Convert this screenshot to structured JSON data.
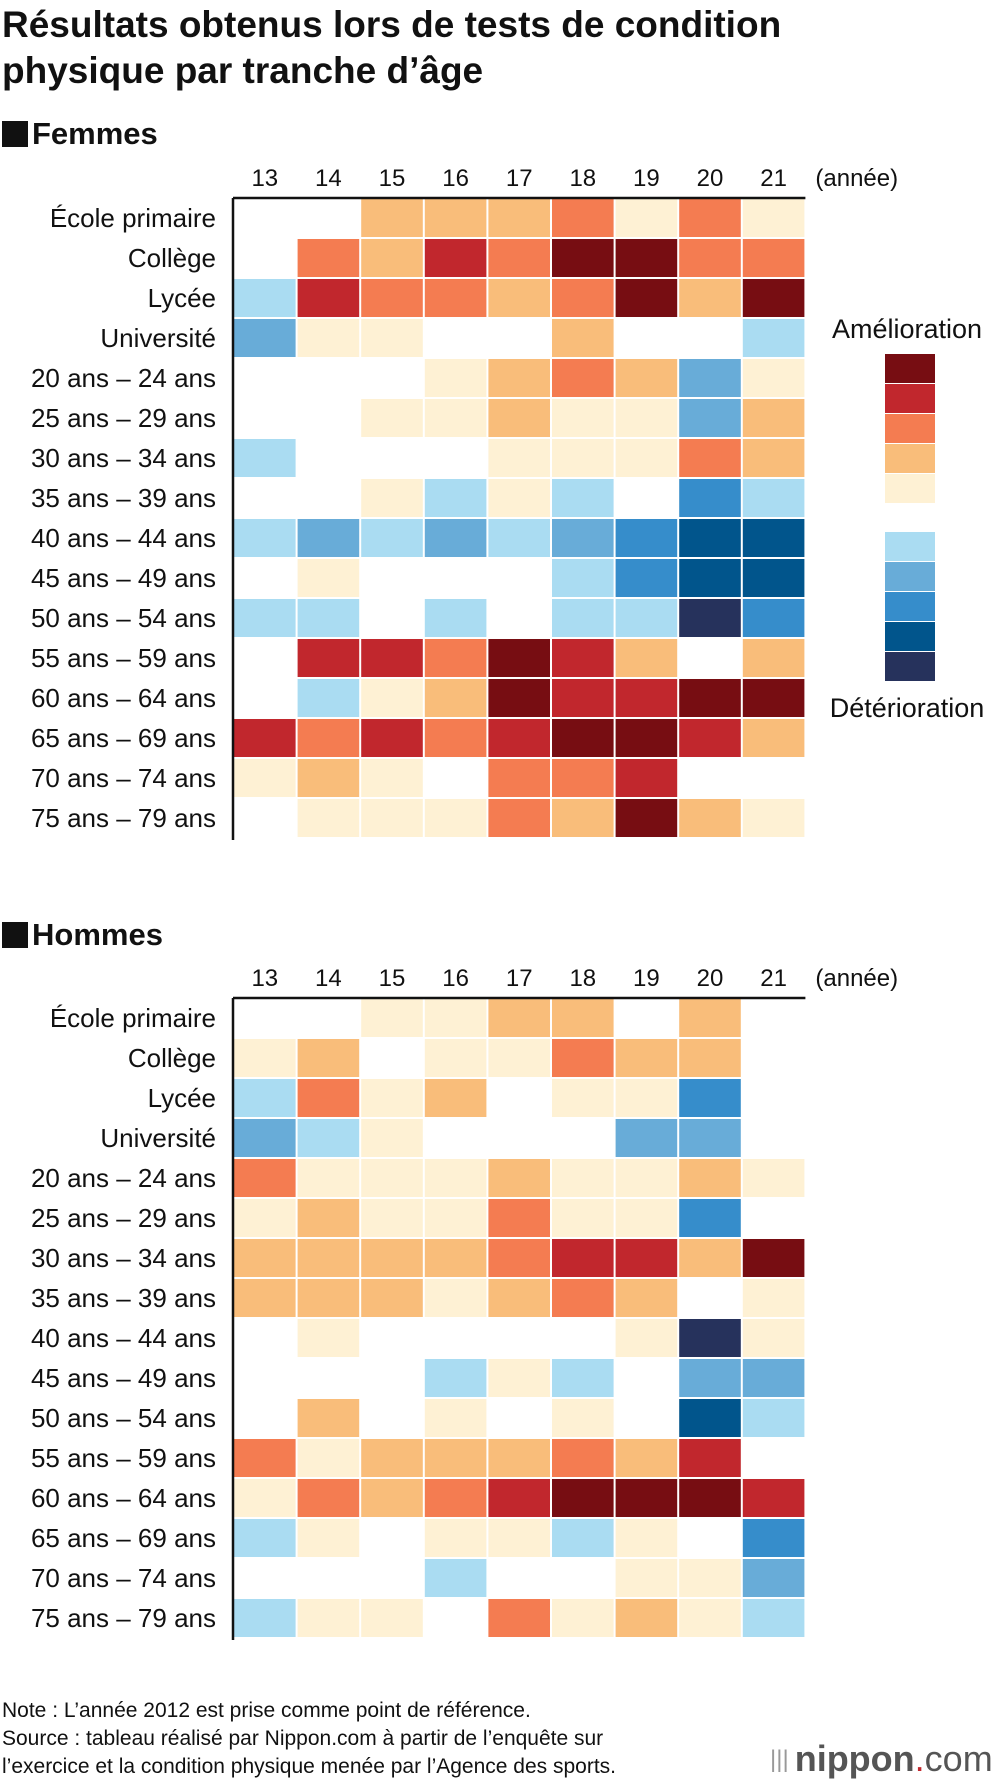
{
  "title_line1": "Résultats obtenus lors de tests de condition",
  "title_line2": "physique par tranche d’âge",
  "colors": {
    "5": "#770d12",
    "4": "#c1272d",
    "3": "#f47c51",
    "2": "#f9bd7a",
    "1": "#fef1d4",
    "0": "#ffffff",
    "-1": "#aadcf2",
    "-2": "#68acd8",
    "-3": "#368dcb",
    "-4": "#01558c",
    "-5": "#26325c"
  },
  "legend": {
    "top_label": "Amélioration",
    "bottom_label": "Détérioration",
    "levels_positive": [
      5,
      4,
      3,
      2,
      1
    ],
    "levels_negative": [
      -1,
      -2,
      -3,
      -4,
      -5
    ]
  },
  "footer": {
    "note": "Note : L’année 2012 est prise comme point de référence.",
    "source_line1": "Source : tableau réalisé par Nippon.com à partir de l’enquête sur",
    "source_line2": "l’exercice et la condition physique menée par l’Agence des sports.",
    "logo_main": "nippon",
    "logo_dot": ".",
    "logo_tail": "com"
  },
  "chart_data": [
    {
      "type": "heatmap",
      "title": "Femmes",
      "x_unit": "(année)",
      "categories_x": [
        "13",
        "14",
        "15",
        "16",
        "17",
        "18",
        "19",
        "20",
        "21"
      ],
      "categories_y": [
        "École primaire",
        "Collège",
        "Lycée",
        "Université",
        "20 ans – 24 ans",
        "25 ans – 29 ans",
        "30 ans – 34 ans",
        "35 ans – 39 ans",
        "40 ans – 44 ans",
        "45 ans – 49 ans",
        "50 ans – 54 ans",
        "55 ans – 59 ans",
        "60 ans – 64 ans",
        "65 ans – 69 ans",
        "70 ans – 74 ans",
        "75 ans – 79 ans"
      ],
      "scale": "ordinal -5 (Détérioration) to +5 (Amélioration), 0 = no change",
      "values": [
        [
          0,
          0,
          2,
          2,
          2,
          3,
          1,
          3,
          1
        ],
        [
          0,
          3,
          2,
          4,
          3,
          5,
          5,
          3,
          3
        ],
        [
          -1,
          4,
          3,
          3,
          2,
          3,
          5,
          2,
          5
        ],
        [
          -2,
          1,
          1,
          0,
          0,
          2,
          0,
          0,
          -1
        ],
        [
          0,
          0,
          0,
          1,
          2,
          3,
          2,
          -2,
          1
        ],
        [
          0,
          0,
          1,
          1,
          2,
          1,
          1,
          -2,
          2
        ],
        [
          -1,
          0,
          0,
          0,
          1,
          1,
          1,
          3,
          2
        ],
        [
          0,
          0,
          1,
          -1,
          1,
          -1,
          0,
          -3,
          -1
        ],
        [
          -1,
          -2,
          -1,
          -2,
          -1,
          -2,
          -3,
          -4,
          -4
        ],
        [
          0,
          1,
          0,
          0,
          0,
          -1,
          -3,
          -4,
          -4
        ],
        [
          -1,
          -1,
          0,
          -1,
          0,
          -1,
          -1,
          -5,
          -3
        ],
        [
          0,
          4,
          4,
          3,
          5,
          4,
          2,
          0,
          2
        ],
        [
          0,
          -1,
          1,
          2,
          5,
          4,
          4,
          5,
          5
        ],
        [
          4,
          3,
          4,
          3,
          4,
          5,
          5,
          4,
          2
        ],
        [
          1,
          2,
          1,
          0,
          3,
          3,
          4,
          0,
          0
        ],
        [
          0,
          1,
          1,
          1,
          3,
          2,
          5,
          2,
          1
        ]
      ]
    },
    {
      "type": "heatmap",
      "title": "Hommes",
      "x_unit": "(année)",
      "categories_x": [
        "13",
        "14",
        "15",
        "16",
        "17",
        "18",
        "19",
        "20",
        "21"
      ],
      "categories_y": [
        "École primaire",
        "Collège",
        "Lycée",
        "Université",
        "20 ans – 24 ans",
        "25 ans – 29 ans",
        "30 ans – 34 ans",
        "35 ans – 39 ans",
        "40 ans – 44 ans",
        "45 ans – 49 ans",
        "50 ans – 54 ans",
        "55 ans – 59 ans",
        "60 ans – 64 ans",
        "65 ans – 69 ans",
        "70 ans – 74 ans",
        "75 ans – 79 ans"
      ],
      "scale": "ordinal -5 (Détérioration) to +5 (Amélioration), 0 = no change",
      "values": [
        [
          0,
          0,
          1,
          1,
          2,
          2,
          0,
          2,
          0
        ],
        [
          1,
          2,
          0,
          1,
          1,
          3,
          2,
          2,
          0
        ],
        [
          -1,
          3,
          1,
          2,
          0,
          1,
          1,
          -3,
          0
        ],
        [
          -2,
          -1,
          1,
          0,
          0,
          0,
          -2,
          -2,
          0
        ],
        [
          3,
          1,
          1,
          1,
          2,
          1,
          1,
          2,
          1
        ],
        [
          1,
          2,
          1,
          1,
          3,
          1,
          1,
          -3,
          0
        ],
        [
          2,
          2,
          2,
          2,
          3,
          4,
          4,
          2,
          5
        ],
        [
          2,
          2,
          2,
          1,
          2,
          3,
          2,
          0,
          1
        ],
        [
          0,
          1,
          0,
          0,
          0,
          0,
          1,
          -5,
          1
        ],
        [
          0,
          0,
          0,
          -1,
          1,
          -1,
          0,
          -2,
          -2
        ],
        [
          0,
          2,
          0,
          1,
          0,
          1,
          0,
          -4,
          -1
        ],
        [
          3,
          1,
          2,
          2,
          2,
          3,
          2,
          4,
          0
        ],
        [
          1,
          3,
          2,
          3,
          4,
          5,
          5,
          5,
          4
        ],
        [
          -1,
          1,
          0,
          1,
          1,
          -1,
          1,
          0,
          -3
        ],
        [
          0,
          0,
          0,
          -1,
          0,
          0,
          1,
          1,
          -2
        ],
        [
          -1,
          1,
          1,
          0,
          3,
          1,
          2,
          1,
          -1
        ]
      ]
    }
  ]
}
